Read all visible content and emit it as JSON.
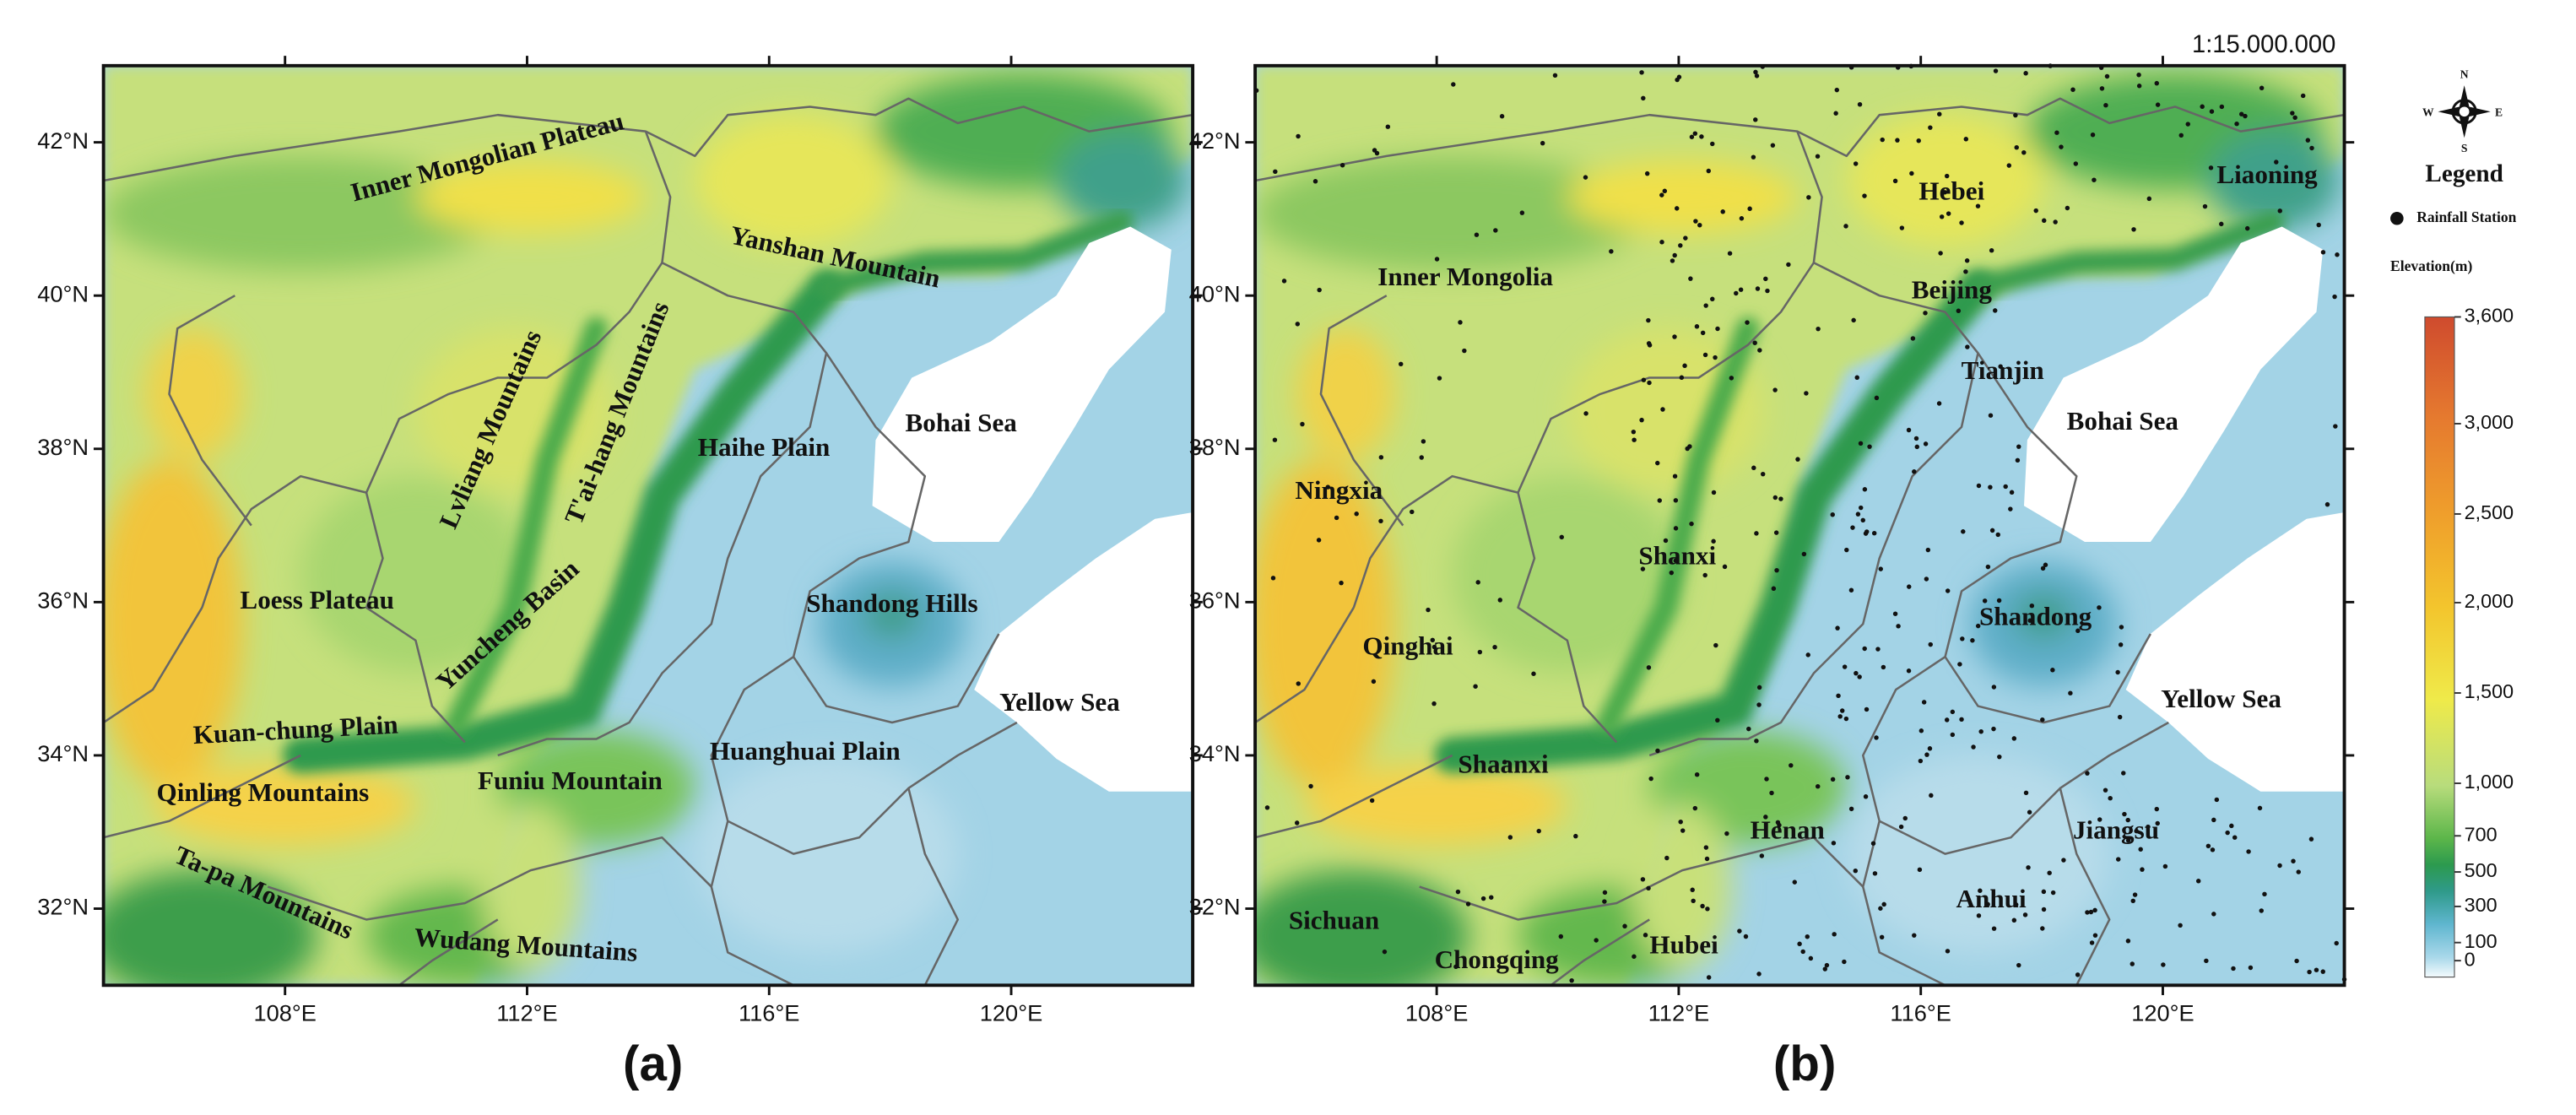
{
  "scale": "1:15.000.000",
  "axes": {
    "lon_range": [
      105,
      123
    ],
    "lat_range": [
      31,
      43
    ],
    "lon_ticks": [
      {
        "value": 108,
        "label": "108°E"
      },
      {
        "value": 112,
        "label": "112°E"
      },
      {
        "value": 116,
        "label": "116°E"
      },
      {
        "value": 120,
        "label": "120°E"
      }
    ],
    "lat_ticks": [
      {
        "value": 32,
        "label": "32°N"
      },
      {
        "value": 34,
        "label": "34°N"
      },
      {
        "value": 36,
        "label": "36°N"
      },
      {
        "value": 38,
        "label": "38°N"
      },
      {
        "value": 40,
        "label": "40°N"
      },
      {
        "value": 42,
        "label": "42°N"
      }
    ]
  },
  "panels": [
    {
      "label": "(a)",
      "places": [
        "Inner Mongolian Plateau",
        "Yanshan Mountain",
        "Lvliang Mountains",
        "T'ai-hang Mountains",
        "Haihe Plain",
        "Bohai Sea",
        "Loess Plateau",
        "Yuncheng Basin",
        "Shandong Hills",
        "Yellow Sea",
        "Kuan-chung Plain",
        "Huanghuai Plain",
        "Funiu Mountain",
        "Qinling Mountains",
        "Ta-pa Mountains",
        "Wudang Mountains"
      ]
    },
    {
      "label": "(b)",
      "places": [
        "Hebei",
        "Liaoning",
        "Inner Mongolia",
        "Beijing",
        "Tianjin",
        "Bohai Sea",
        "Ningxia",
        "Shanxi",
        "Shandong",
        "Qinghai",
        "Yellow Sea",
        "Shaanxi",
        "Henan",
        "Jiangsu",
        "Anhui",
        "Sichuan",
        "Chongqing",
        "Hubei"
      ]
    }
  ],
  "legend": {
    "compass": {
      "n": "N",
      "s": "S",
      "e": "E",
      "w": "W"
    },
    "title": "Legend",
    "station": "Rainfall Station",
    "elevation_title": "Elevation(m)",
    "elevation_ticks": [
      0,
      100,
      300,
      500,
      700,
      {
        "value": 1000,
        "label": "1,000"
      },
      {
        "value": 1500,
        "label": "1,500"
      },
      {
        "value": 2000,
        "label": "2,000"
      },
      {
        "value": 2500,
        "label": "2,500"
      },
      {
        "value": 3000,
        "label": "3,000"
      },
      {
        "value": 3600,
        "label": "3,600"
      }
    ]
  }
}
